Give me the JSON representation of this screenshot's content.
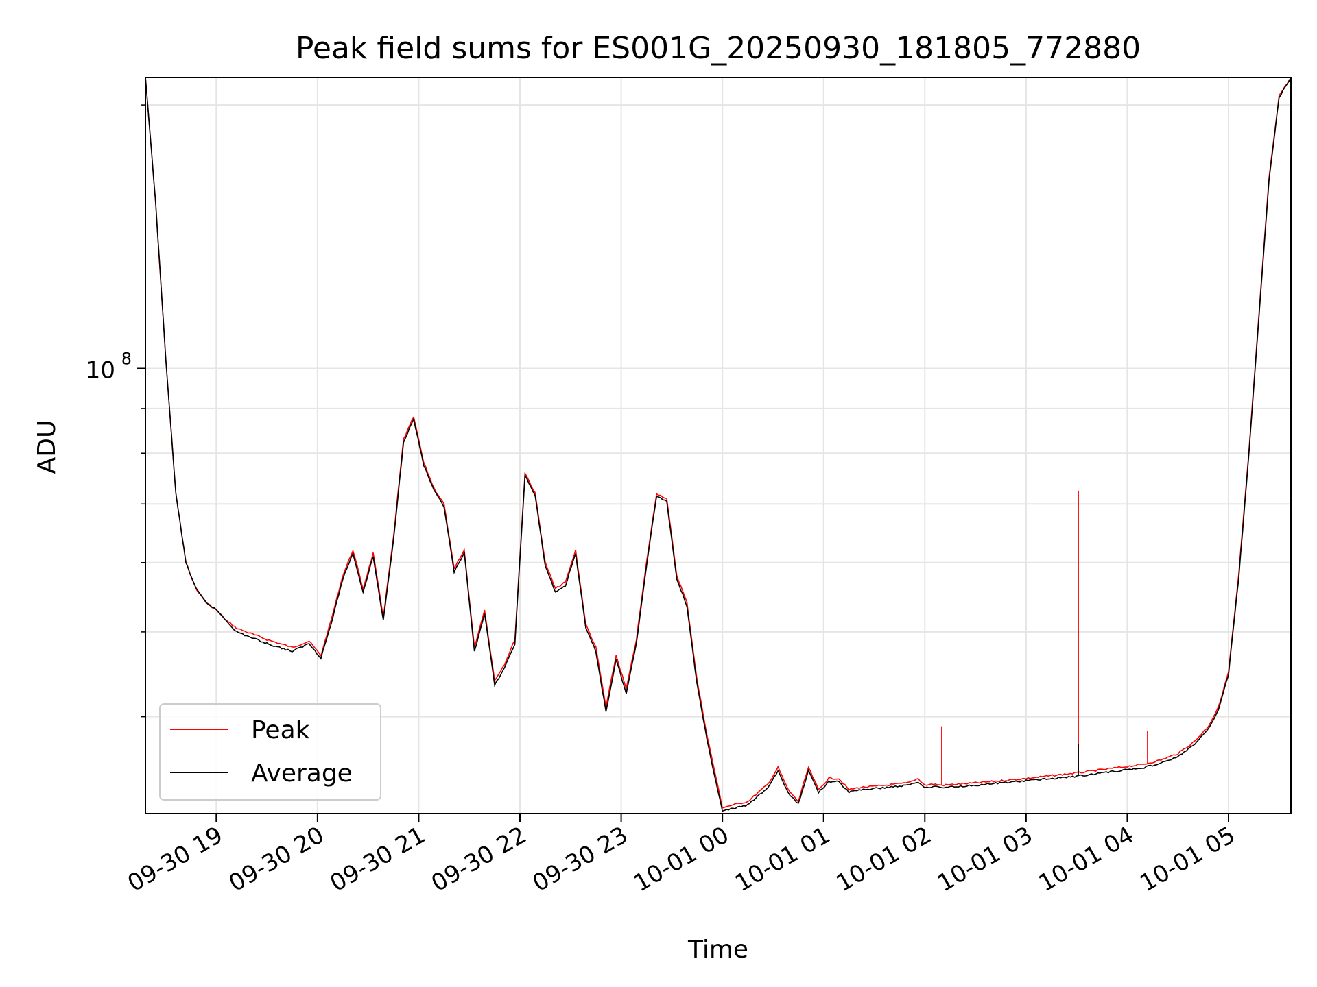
{
  "chart_data": {
    "type": "line",
    "title": "Peak field sums for ES001G_20250930_181805_772880",
    "xlabel": "Time",
    "ylabel": "ADU",
    "yscale": "log",
    "grid": true,
    "legend_position": "lower-left",
    "x_ticks": [
      "09-30 19",
      "09-30 20",
      "09-30 21",
      "09-30 22",
      "09-30 23",
      "10-01 00",
      "10-01 01",
      "10-01 02",
      "10-01 03",
      "10-01 04",
      "10-01 05"
    ],
    "xlim": [
      "2025-09-30 18:18",
      "2025-10-01 05:37"
    ],
    "ylim": [
      31000000,
      215000000
    ],
    "y_tick_labels": [
      {
        "value": 100000000,
        "base": "10",
        "exp": "8"
      }
    ],
    "x": [
      "2025-09-30 18:18",
      "2025-09-30 18:24",
      "2025-09-30 18:30",
      "2025-09-30 18:36",
      "2025-09-30 18:42",
      "2025-09-30 18:48",
      "2025-09-30 18:54",
      "2025-09-30 19:00",
      "2025-09-30 19:06",
      "2025-09-30 19:12",
      "2025-09-30 19:30",
      "2025-09-30 19:45",
      "2025-09-30 19:55",
      "2025-09-30 20:02",
      "2025-09-30 20:08",
      "2025-09-30 20:15",
      "2025-09-30 20:21",
      "2025-09-30 20:27",
      "2025-09-30 20:33",
      "2025-09-30 20:39",
      "2025-09-30 20:45",
      "2025-09-30 20:51",
      "2025-09-30 20:57",
      "2025-09-30 21:03",
      "2025-09-30 21:09",
      "2025-09-30 21:15",
      "2025-09-30 21:21",
      "2025-09-30 21:27",
      "2025-09-30 21:33",
      "2025-09-30 21:39",
      "2025-09-30 21:45",
      "2025-09-30 21:51",
      "2025-09-30 21:57",
      "2025-09-30 22:03",
      "2025-09-30 22:09",
      "2025-09-30 22:15",
      "2025-09-30 22:21",
      "2025-09-30 22:27",
      "2025-09-30 22:33",
      "2025-09-30 22:39",
      "2025-09-30 22:45",
      "2025-09-30 22:51",
      "2025-09-30 22:57",
      "2025-09-30 23:03",
      "2025-09-30 23:09",
      "2025-09-30 23:15",
      "2025-09-30 23:21",
      "2025-09-30 23:27",
      "2025-09-30 23:33",
      "2025-09-30 23:39",
      "2025-09-30 23:45",
      "2025-09-30 23:51",
      "2025-10-01 00:00",
      "2025-10-01 00:15",
      "2025-10-01 00:27",
      "2025-10-01 00:33",
      "2025-10-01 00:39",
      "2025-10-01 00:45",
      "2025-10-01 00:51",
      "2025-10-01 00:57",
      "2025-10-01 01:03",
      "2025-10-01 01:09",
      "2025-10-01 01:15",
      "2025-10-01 01:21",
      "2025-10-01 01:30",
      "2025-10-01 01:50",
      "2025-10-01 01:56",
      "2025-10-01 02:00",
      "2025-10-01 02:05",
      "2025-10-01 02:10",
      "2025-10-01 02:30",
      "2025-10-01 03:00",
      "2025-10-01 03:30",
      "2025-10-01 03:55",
      "2025-10-01 04:10",
      "2025-10-01 04:20",
      "2025-10-01 04:30",
      "2025-10-01 04:40",
      "2025-10-01 04:48",
      "2025-10-01 04:54",
      "2025-10-01 05:00",
      "2025-10-01 05:06",
      "2025-10-01 05:12",
      "2025-10-01 05:18",
      "2025-10-01 05:24",
      "2025-10-01 05:30",
      "2025-10-01 05:37"
    ],
    "series": [
      {
        "name": "Peak",
        "color": "#ff0000",
        "values": [
          215000000,
          155000000,
          103000000,
          72000000,
          60000000,
          56000000,
          54000000,
          53000000,
          51500000,
          50500000,
          49000000,
          48000000,
          48800000,
          47000000,
          51500000,
          58000000,
          62000000,
          56000000,
          61500000,
          52000000,
          64000000,
          83000000,
          88000000,
          78000000,
          73000000,
          70000000,
          59000000,
          62000000,
          48000000,
          53000000,
          44000000,
          46000000,
          49000000,
          76000000,
          72000000,
          60000000,
          56000000,
          57000000,
          62000000,
          51000000,
          48000000,
          41000000,
          47000000,
          43000000,
          49000000,
          60000000,
          72000000,
          71000000,
          58000000,
          54000000,
          44000000,
          38000000,
          31500000,
          32000000,
          33500000,
          35000000,
          33000000,
          32000000,
          35000000,
          33000000,
          34000000,
          34000000,
          33000000,
          33200000,
          33300000,
          33600000,
          34000000,
          33400000,
          33500000,
          33400000,
          33600000,
          34000000,
          34500000,
          35000000,
          35300000,
          35700000,
          36300000,
          37500000,
          39000000,
          41000000,
          45000000,
          58000000,
          80000000,
          115000000,
          165000000,
          205000000,
          215000000
        ]
      },
      {
        "name": "Average",
        "color": "#000000",
        "values": [
          215000000,
          155000000,
          103000000,
          72000000,
          60000000,
          56000000,
          54000000,
          53000000,
          51500000,
          50000000,
          48500000,
          47500000,
          48500000,
          46700000,
          51000000,
          57500000,
          61500000,
          55500000,
          61000000,
          51500000,
          63500000,
          82500000,
          87500000,
          77500000,
          72500000,
          69500000,
          58500000,
          61500000,
          47500000,
          52500000,
          43500000,
          45500000,
          48500000,
          75500000,
          71500000,
          59500000,
          55500000,
          56500000,
          61500000,
          50500000,
          47500000,
          40500000,
          46500000,
          42500000,
          48500000,
          59500000,
          71500000,
          70500000,
          57500000,
          53500000,
          43500000,
          37500000,
          31200000,
          31700000,
          33200000,
          34700000,
          32700000,
          31800000,
          34700000,
          32800000,
          33700000,
          33700000,
          32800000,
          33000000,
          33100000,
          33400000,
          33700000,
          33200000,
          33300000,
          33200000,
          33400000,
          33800000,
          34200000,
          34700000,
          35000000,
          35400000,
          36000000,
          37200000,
          38700000,
          40700000,
          44700000,
          57500000,
          79500000,
          114000000,
          164000000,
          204000000,
          215000000
        ]
      }
    ],
    "spikes": [
      {
        "series": "Peak",
        "x": "2025-10-01 02:10",
        "value": 39000000
      },
      {
        "series": "Peak",
        "x": "2025-10-01 03:31",
        "value": 72500000
      },
      {
        "series": "Average",
        "x": "2025-10-01 03:31",
        "value": 37200000
      },
      {
        "series": "Peak",
        "x": "2025-10-01 04:12",
        "value": 38500000
      }
    ]
  }
}
